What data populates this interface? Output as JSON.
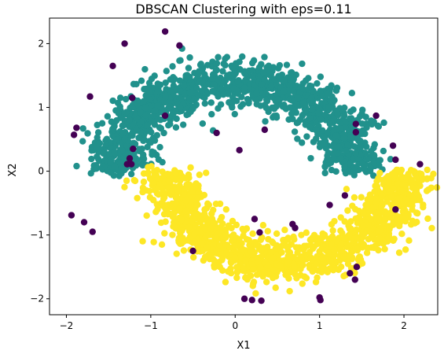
{
  "chart_data": {
    "type": "scatter",
    "title": "DBSCAN Clustering with eps=0.11",
    "xlabel": "X1",
    "ylabel": "X2",
    "xlim": [
      -2.2,
      2.4
    ],
    "ylim": [
      -2.25,
      2.4
    ],
    "xticks": [
      -2,
      -1,
      0,
      1,
      2
    ],
    "yticks": [
      -2,
      -1,
      0,
      1,
      2
    ],
    "xtick_labels": [
      "−2",
      "−1",
      "0",
      "1",
      "2"
    ],
    "ytick_labels": [
      "−2",
      "−1",
      "0",
      "1",
      "2"
    ],
    "grid": false,
    "legend": "none",
    "series": [
      {
        "color": "#21918c",
        "shape": "upper-moon",
        "center": [
          0,
          0
        ],
        "radius": 1.4,
        "thickness": 0.32,
        "approx_count": 1300
      },
      {
        "color": "#fde725",
        "shape": "lower-moon",
        "center": [
          0.6,
          0
        ],
        "radius": 1.4,
        "thickness": 0.32,
        "approx_count": 1300
      },
      {
        "color": "#440154",
        "shape": "noise",
        "points": [
          [
            -0.83,
            2.19
          ],
          [
            -0.66,
            1.97
          ],
          [
            -1.31,
            2.0
          ],
          [
            -1.72,
            1.17
          ],
          [
            -1.45,
            1.65
          ],
          [
            -1.88,
            0.68
          ],
          [
            -1.91,
            0.57
          ],
          [
            -1.94,
            -0.69
          ],
          [
            -1.69,
            -0.95
          ],
          [
            -1.79,
            -0.8
          ],
          [
            -1.22,
            1.15
          ],
          [
            -1.25,
            0.2
          ],
          [
            -1.28,
            0.11
          ],
          [
            -1.23,
            0.11
          ],
          [
            -1.21,
            0.35
          ],
          [
            -0.83,
            0.87
          ],
          [
            -0.22,
            0.6
          ],
          [
            0.05,
            0.33
          ],
          [
            0.35,
            0.65
          ],
          [
            0.23,
            -0.75
          ],
          [
            0.29,
            -0.96
          ],
          [
            0.68,
            -0.83
          ],
          [
            0.71,
            -0.89
          ],
          [
            -0.5,
            -1.25
          ],
          [
            0.11,
            -2.0
          ],
          [
            0.2,
            -2.02
          ],
          [
            0.31,
            -2.03
          ],
          [
            1.0,
            -1.98
          ],
          [
            1.01,
            -2.02
          ],
          [
            1.12,
            -0.53
          ],
          [
            1.3,
            -0.38
          ],
          [
            1.43,
            0.74
          ],
          [
            1.43,
            0.61
          ],
          [
            1.44,
            -1.5
          ],
          [
            1.42,
            -1.7
          ],
          [
            1.36,
            -1.6
          ],
          [
            1.67,
            0.87
          ],
          [
            1.87,
            0.4
          ],
          [
            1.9,
            0.18
          ],
          [
            1.9,
            -0.6
          ],
          [
            2.19,
            0.11
          ]
        ]
      }
    ]
  }
}
